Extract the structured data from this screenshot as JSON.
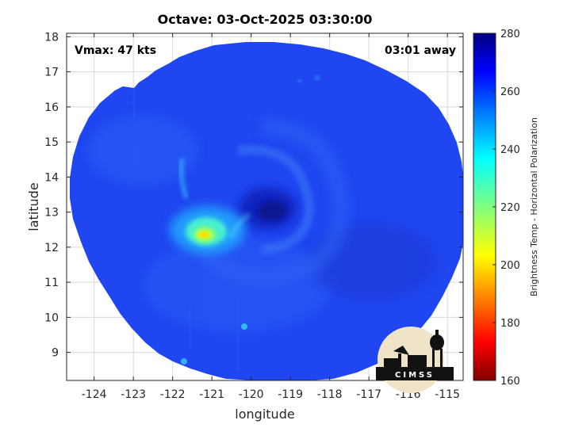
{
  "chart_data": {
    "type": "heatmap",
    "title": "Octave: 03-Oct-2025 03:30:00",
    "xlabel": "longitude",
    "ylabel": "latitude",
    "xlim": [
      -124.7,
      -114.6
    ],
    "ylim": [
      8.2,
      18.1
    ],
    "xticks": [
      -124,
      -123,
      -122,
      -121,
      -120,
      -119,
      -118,
      -117,
      -116,
      -115
    ],
    "yticks": [
      9,
      10,
      11,
      12,
      13,
      14,
      15,
      16,
      17,
      18
    ],
    "grid": true,
    "colorbar": {
      "label": "Brightness Temp - Horizontal Polarization",
      "range": [
        160,
        280
      ],
      "ticks": [
        160,
        180,
        200,
        220,
        240,
        260,
        280
      ],
      "colormap": "jet"
    },
    "annotations": {
      "vmax": "Vmax: 47 kts",
      "time_offset": "03:01 away"
    },
    "storm_center": {
      "lon": -119.4,
      "lat": 12.9
    },
    "field_notes": {
      "background_temp": 262,
      "eye_temp": 272,
      "coldest_temp": 200,
      "coldest_location": {
        "lon": -121.2,
        "lat": 12.1
      }
    }
  },
  "logo": {
    "text": "CIMSS"
  },
  "colors": {
    "background": "#ffffff",
    "grid": "#d9d9d9",
    "axes": "#262626"
  }
}
